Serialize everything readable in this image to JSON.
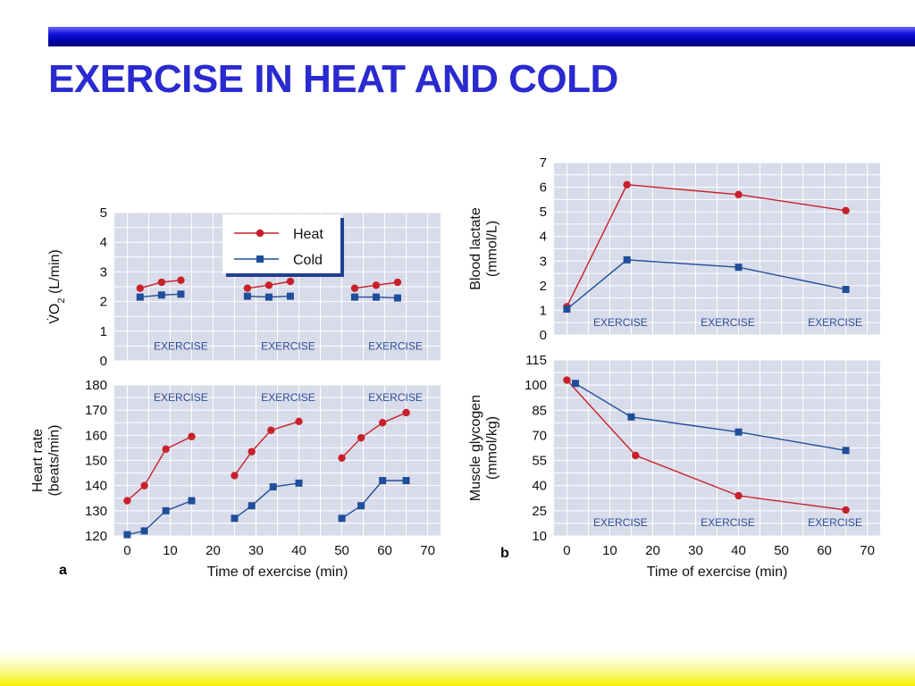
{
  "title": "EXERCISE IN HEAT AND COLD",
  "colors": {
    "heat": "#c8202a",
    "cold": "#1f4e9a",
    "panel_bg": "#d8dbe9",
    "grid": "#ffffff",
    "title": "#2a2ad0"
  },
  "legend": {
    "entries": [
      "Heat",
      "Cold"
    ],
    "placement": "top-center of panel a (VO2)"
  },
  "panel_letters": [
    "a",
    "b"
  ],
  "chart_data": [
    {
      "id": "vo2",
      "type": "line",
      "ylabel_lines": [
        "V̇O",
        "2",
        " (L/min)"
      ],
      "xlim": [
        -3,
        73
      ],
      "ylim": [
        0,
        5
      ],
      "yticks": [
        0,
        1,
        2,
        3,
        4,
        5
      ],
      "grid": true,
      "annotations": [
        {
          "text": "EXERCISE",
          "x": 7,
          "y": 0.5
        },
        {
          "text": "EXERCISE",
          "x": 32,
          "y": 0.5
        },
        {
          "text": "EXERCISE",
          "x": 57,
          "y": 0.5
        }
      ],
      "series": [
        {
          "name": "Heat",
          "segments": [
            [
              [
                3,
                2.45
              ],
              [
                8,
                2.65
              ],
              [
                12.5,
                2.72
              ]
            ],
            [
              [
                28,
                2.45
              ],
              [
                33,
                2.55
              ],
              [
                38,
                2.68
              ]
            ],
            [
              [
                53,
                2.45
              ],
              [
                58,
                2.55
              ],
              [
                63,
                2.65
              ]
            ]
          ]
        },
        {
          "name": "Cold",
          "segments": [
            [
              [
                3,
                2.15
              ],
              [
                8,
                2.22
              ],
              [
                12.5,
                2.25
              ]
            ],
            [
              [
                28,
                2.18
              ],
              [
                33,
                2.15
              ],
              [
                38,
                2.18
              ]
            ],
            [
              [
                53,
                2.15
              ],
              [
                58,
                2.15
              ],
              [
                63,
                2.12
              ]
            ]
          ]
        }
      ]
    },
    {
      "id": "heart_rate",
      "type": "line",
      "ylabel_lines": [
        "Heart rate",
        "(beats/min)"
      ],
      "xlabel": "Time of exercise (min)",
      "xlim": [
        -3,
        73
      ],
      "xticks": [
        0,
        10,
        20,
        30,
        40,
        50,
        60,
        70
      ],
      "ylim": [
        120,
        180
      ],
      "yticks": [
        120,
        130,
        140,
        150,
        160,
        170,
        180
      ],
      "grid": true,
      "annotations": [
        {
          "text": "EXERCISE",
          "x": 7,
          "y": 175
        },
        {
          "text": "EXERCISE",
          "x": 32,
          "y": 175
        },
        {
          "text": "EXERCISE",
          "x": 57,
          "y": 175
        }
      ],
      "series": [
        {
          "name": "Heat",
          "segments": [
            [
              [
                0,
                134
              ],
              [
                4,
                140
              ],
              [
                9,
                154.5
              ],
              [
                15,
                159.5
              ]
            ],
            [
              [
                25,
                144
              ],
              [
                29,
                153.5
              ],
              [
                33.5,
                162
              ],
              [
                40,
                165.5
              ]
            ],
            [
              [
                50,
                151
              ],
              [
                54.5,
                159
              ],
              [
                59.5,
                165
              ],
              [
                65,
                169
              ]
            ]
          ]
        },
        {
          "name": "Cold",
          "segments": [
            [
              [
                0,
                120.5
              ],
              [
                4,
                122
              ],
              [
                9,
                130
              ],
              [
                15,
                134
              ]
            ],
            [
              [
                25,
                127
              ],
              [
                29,
                132
              ],
              [
                34,
                139.5
              ],
              [
                40,
                141
              ]
            ],
            [
              [
                50,
                127
              ],
              [
                54.5,
                132
              ],
              [
                59.5,
                142
              ],
              [
                65,
                142
              ]
            ]
          ]
        }
      ]
    },
    {
      "id": "blood_lactate",
      "type": "line",
      "ylabel_lines": [
        "Blood lactate",
        "(mmol/L)"
      ],
      "xlim": [
        -3,
        73
      ],
      "ylim": [
        0,
        7
      ],
      "yticks": [
        0,
        1,
        2,
        3,
        4,
        5,
        6,
        7
      ],
      "grid": true,
      "annotations": [
        {
          "text": "EXERCISE",
          "x": 7,
          "y": 0.5
        },
        {
          "text": "EXERCISE",
          "x": 32,
          "y": 0.5
        },
        {
          "text": "EXERCISE",
          "x": 57,
          "y": 0.5
        }
      ],
      "series": [
        {
          "name": "Heat",
          "segments": [
            [
              [
                0,
                1.15
              ],
              [
                14,
                6.1
              ],
              [
                40,
                5.7
              ],
              [
                65,
                5.05
              ]
            ]
          ]
        },
        {
          "name": "Cold",
          "segments": [
            [
              [
                0,
                1.05
              ],
              [
                14,
                3.05
              ],
              [
                40,
                2.75
              ],
              [
                65,
                1.85
              ]
            ]
          ]
        }
      ]
    },
    {
      "id": "muscle_glycogen",
      "type": "line",
      "ylabel_lines": [
        "Muscle glycogen",
        "(mmol/kg)"
      ],
      "xlabel": "Time of exercise (min)",
      "xlim": [
        -3,
        73
      ],
      "xticks": [
        0,
        10,
        20,
        30,
        40,
        50,
        60,
        70
      ],
      "ylim": [
        10,
        115
      ],
      "yticks": [
        10,
        25,
        40,
        55,
        70,
        85,
        100,
        115
      ],
      "grid": true,
      "annotations": [
        {
          "text": "EXERCISE",
          "x": 7,
          "y": 18
        },
        {
          "text": "EXERCISE",
          "x": 32,
          "y": 18
        },
        {
          "text": "EXERCISE",
          "x": 57,
          "y": 18
        }
      ],
      "series": [
        {
          "name": "Heat",
          "segments": [
            [
              [
                0,
                103
              ],
              [
                16,
                58
              ],
              [
                40,
                34
              ],
              [
                65,
                25.5
              ]
            ]
          ]
        },
        {
          "name": "Cold",
          "segments": [
            [
              [
                2,
                101
              ],
              [
                15,
                81
              ],
              [
                40,
                72
              ],
              [
                65,
                61
              ]
            ]
          ]
        }
      ]
    }
  ]
}
